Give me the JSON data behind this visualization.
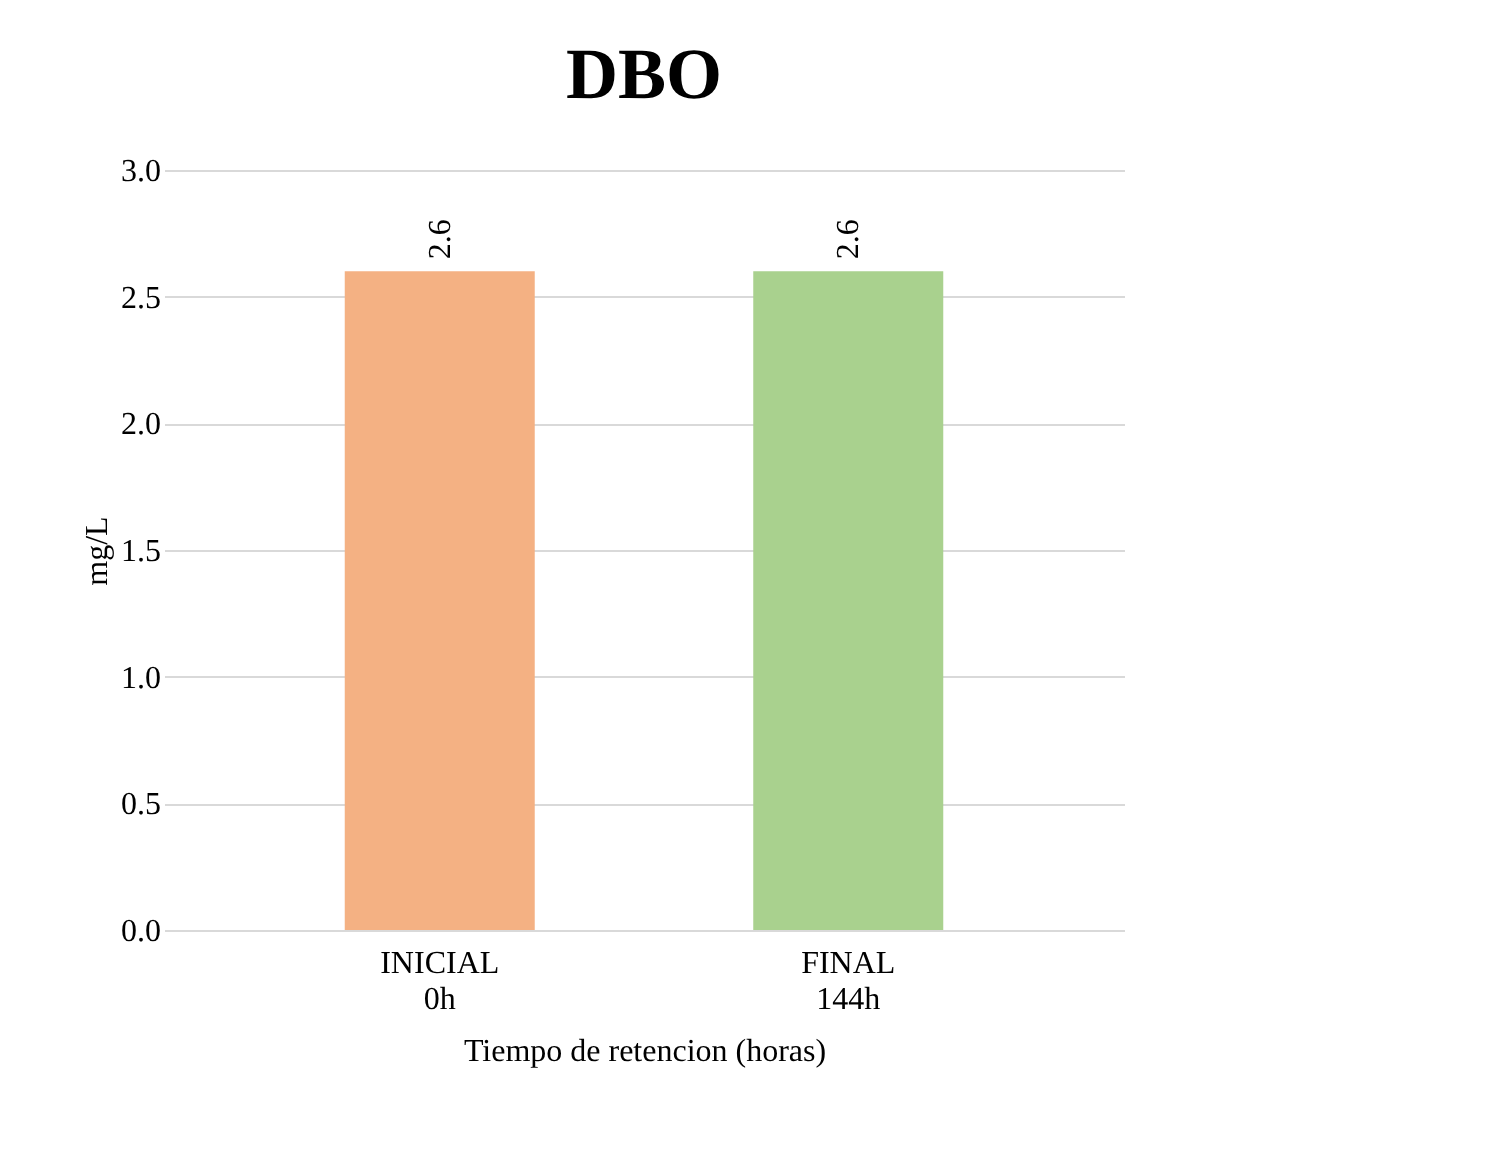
{
  "chart_data": {
    "type": "bar",
    "title": "DBO",
    "xlabel": "Tiempo de retencion (horas)",
    "ylabel": "mg/L",
    "categories": [
      "INICIAL\n0h",
      "FINAL\n144h"
    ],
    "values": [
      2.6,
      2.6
    ],
    "colors": [
      "#f4b183",
      "#a9d18e"
    ],
    "ylim": [
      0,
      3.0
    ],
    "yticks": [
      {
        "value": 0,
        "label": "0.0"
      },
      {
        "value": 0.5,
        "label": "0.5"
      },
      {
        "value": 1.0,
        "label": "1.0"
      },
      {
        "value": 1.5,
        "label": "1.5"
      },
      {
        "value": 2.0,
        "label": "2.0"
      },
      {
        "value": 2.5,
        "label": "2.5"
      },
      {
        "value": 3.0,
        "label": "3.0"
      }
    ],
    "grid": "y",
    "data_labels": true
  }
}
